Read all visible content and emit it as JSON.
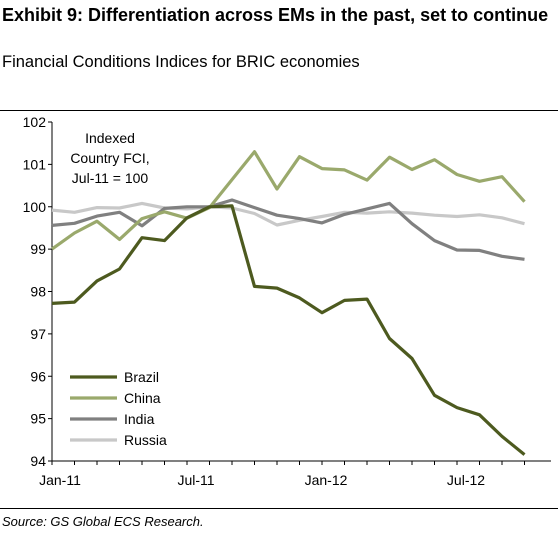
{
  "header": {
    "title": "Exhibit 9: Differentiation across EMs in the past, set to continue",
    "subtitle": "Financial Conditions Indices for BRIC economies"
  },
  "footer": {
    "source": "Source: GS Global ECS Research."
  },
  "chart_data": {
    "type": "line",
    "title": "",
    "xlabel": "",
    "ylabel": "",
    "ylim": [
      94,
      102
    ],
    "yticks": [
      94,
      95,
      96,
      97,
      98,
      99,
      100,
      101,
      102
    ],
    "xticks": [
      "Jan-11",
      "Jul-11",
      "Jan-12",
      "Jul-12"
    ],
    "x_period": "semi-monthly",
    "x_start": "Jan-11",
    "grid": false,
    "legend_position": "bottom-left",
    "annotation": [
      "Indexed",
      "Country FCI,",
      "Jul-11 = 100"
    ],
    "series": [
      {
        "name": "Brazil",
        "color": "#4d5a1f",
        "values": [
          97.72,
          97.75,
          98.25,
          98.53,
          99.27,
          99.2,
          99.74,
          100.0,
          100.02,
          98.12,
          98.08,
          97.85,
          97.5,
          97.79,
          97.82,
          96.89,
          96.42,
          95.55,
          95.26,
          95.09,
          94.58,
          94.15
        ]
      },
      {
        "name": "China",
        "color": "#9aa96c",
        "values": [
          99.0,
          99.38,
          99.66,
          99.23,
          99.72,
          99.88,
          99.73,
          99.98,
          100.64,
          101.3,
          100.42,
          101.18,
          100.9,
          100.87,
          100.63,
          101.17,
          100.88,
          101.11,
          100.76,
          100.6,
          100.71,
          100.12
        ]
      },
      {
        "name": "India",
        "color": "#808080",
        "values": [
          99.56,
          99.61,
          99.78,
          99.87,
          99.55,
          99.96,
          100.0,
          100.0,
          100.16,
          99.98,
          99.8,
          99.72,
          99.62,
          99.82,
          99.95,
          100.08,
          99.6,
          99.2,
          98.98,
          98.97,
          98.83,
          98.76
        ]
      },
      {
        "name": "Russia",
        "color": "#c8c8c8",
        "values": [
          99.92,
          99.87,
          99.98,
          99.97,
          100.08,
          99.97,
          99.95,
          100.0,
          99.97,
          99.84,
          99.57,
          99.68,
          99.77,
          99.87,
          99.85,
          99.88,
          99.85,
          99.8,
          99.77,
          99.81,
          99.74,
          99.6
        ]
      }
    ]
  }
}
